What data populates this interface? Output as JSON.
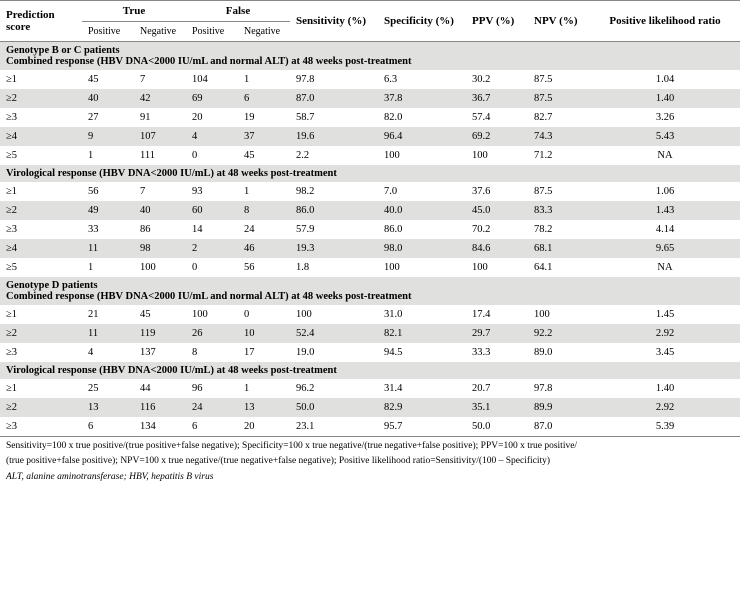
{
  "columns": {
    "c0": "Prediction score",
    "true": "True",
    "false": "False",
    "positive": "Positive",
    "negative": "Negative",
    "sens": "Sensitivity (%)",
    "spec": "Specificity (%)",
    "ppv": "PPV (%)",
    "npv": "NPV (%)",
    "plr": "Positive likelihood ratio"
  },
  "sections": [
    {
      "title1": "Genotype B or C patients",
      "title2": "Combined response (HBV DNA<2000 IU/mL and normal ALT) at 48 weeks post-treatment",
      "rows": [
        {
          "ps": "≥1",
          "tp": "45",
          "tn": "7",
          "fp": "104",
          "fn": "1",
          "sens": "97.8",
          "spec": "6.3",
          "ppv": "30.2",
          "npv": "87.5",
          "plr": "1.04"
        },
        {
          "ps": "≥2",
          "tp": "40",
          "tn": "42",
          "fp": "69",
          "fn": "6",
          "sens": "87.0",
          "spec": "37.8",
          "ppv": "36.7",
          "npv": "87.5",
          "plr": "1.40"
        },
        {
          "ps": "≥3",
          "tp": "27",
          "tn": "91",
          "fp": "20",
          "fn": "19",
          "sens": "58.7",
          "spec": "82.0",
          "ppv": "57.4",
          "npv": "82.7",
          "plr": "3.26"
        },
        {
          "ps": "≥4",
          "tp": "9",
          "tn": "107",
          "fp": "4",
          "fn": "37",
          "sens": "19.6",
          "spec": "96.4",
          "ppv": "69.2",
          "npv": "74.3",
          "plr": "5.43"
        },
        {
          "ps": "≥5",
          "tp": "1",
          "tn": "111",
          "fp": "0",
          "fn": "45",
          "sens": "2.2",
          "spec": "100",
          "ppv": "100",
          "npv": "71.2",
          "plr": "NA"
        }
      ]
    },
    {
      "title1": "Virological response (HBV DNA<2000 IU/mL) at 48 weeks post-treatment",
      "rows": [
        {
          "ps": "≥1",
          "tp": "56",
          "tn": "7",
          "fp": "93",
          "fn": "1",
          "sens": "98.2",
          "spec": "7.0",
          "ppv": "37.6",
          "npv": "87.5",
          "plr": "1.06"
        },
        {
          "ps": "≥2",
          "tp": "49",
          "tn": "40",
          "fp": "60",
          "fn": "8",
          "sens": "86.0",
          "spec": "40.0",
          "ppv": "45.0",
          "npv": "83.3",
          "plr": "1.43"
        },
        {
          "ps": "≥3",
          "tp": "33",
          "tn": "86",
          "fp": "14",
          "fn": "24",
          "sens": "57.9",
          "spec": "86.0",
          "ppv": "70.2",
          "npv": "78.2",
          "plr": "4.14"
        },
        {
          "ps": "≥4",
          "tp": "11",
          "tn": "98",
          "fp": "2",
          "fn": "46",
          "sens": "19.3",
          "spec": "98.0",
          "ppv": "84.6",
          "npv": "68.1",
          "plr": "9.65"
        },
        {
          "ps": "≥5",
          "tp": "1",
          "tn": "100",
          "fp": "0",
          "fn": "56",
          "sens": "1.8",
          "spec": "100",
          "ppv": "100",
          "npv": "64.1",
          "plr": "NA"
        }
      ]
    },
    {
      "title1": "Genotype D patients",
      "title2": "Combined response (HBV DNA<2000 IU/mL and normal ALT) at 48 weeks post-treatment",
      "rows": [
        {
          "ps": "≥1",
          "tp": "21",
          "tn": "45",
          "fp": "100",
          "fn": "0",
          "sens": "100",
          "spec": "31.0",
          "ppv": "17.4",
          "npv": "100",
          "plr": "1.45"
        },
        {
          "ps": "≥2",
          "tp": "11",
          "tn": "119",
          "fp": "26",
          "fn": "10",
          "sens": "52.4",
          "spec": "82.1",
          "ppv": "29.7",
          "npv": "92.2",
          "plr": "2.92"
        },
        {
          "ps": "≥3",
          "tp": "4",
          "tn": "137",
          "fp": "8",
          "fn": "17",
          "sens": "19.0",
          "spec": "94.5",
          "ppv": "33.3",
          "npv": "89.0",
          "plr": "3.45"
        }
      ]
    },
    {
      "title1": "Virological response (HBV DNA<2000 IU/mL) at 48 weeks post-treatment",
      "rows": [
        {
          "ps": "≥1",
          "tp": "25",
          "tn": "44",
          "fp": "96",
          "fn": "1",
          "sens": "96.2",
          "spec": "31.4",
          "ppv": "20.7",
          "npv": "97.8",
          "plr": "1.40"
        },
        {
          "ps": "≥2",
          "tp": "13",
          "tn": "116",
          "fp": "24",
          "fn": "13",
          "sens": "50.0",
          "spec": "82.9",
          "ppv": "35.1",
          "npv": "89.9",
          "plr": "2.92"
        },
        {
          "ps": "≥3",
          "tp": "6",
          "tn": "134",
          "fp": "6",
          "fn": "20",
          "sens": "23.1",
          "spec": "95.7",
          "ppv": "50.0",
          "npv": "87.0",
          "plr": "5.39"
        }
      ]
    }
  ],
  "footnotes": {
    "line1": "Sensitivity=100 x true positive/(true positive+false negative); Specificity=100 x true negative/(true negative+false positive); PPV=100 x true positive/",
    "line2": "(true positive+false positive); NPV=100 x true negative/(true negative+false negative); Positive likelihood ratio=Sensitivity/(100 – Specificity)",
    "line3": "ALT, alanine aminotransferase; HBV, hepatitis B virus"
  }
}
